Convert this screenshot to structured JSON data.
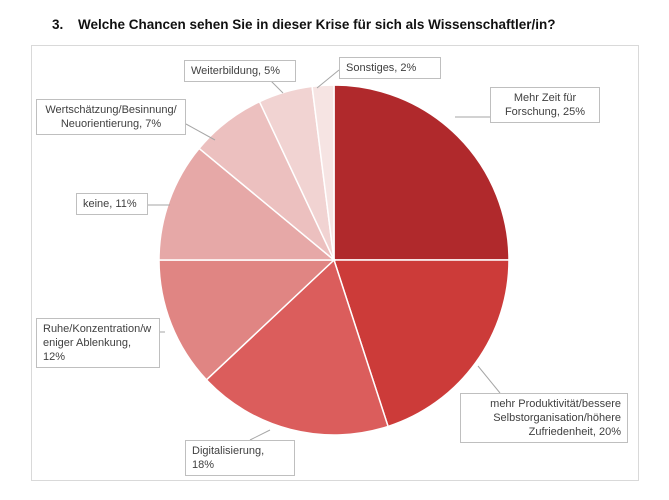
{
  "title": {
    "number": "3.",
    "text": "Welche Chancen sehen Sie in dieser Krise für sich als Wissenschaftler/in?"
  },
  "chart_data": {
    "type": "pie",
    "slices": [
      {
        "label": "Mehr Zeit für Forschung",
        "value": 25,
        "color": "#b0292c",
        "label_text": "Mehr Zeit für Forschung, 25%"
      },
      {
        "label": "mehr Produktivität/bessere Selbstorganisation/höhere Zufriedenheit",
        "value": 20,
        "color": "#cc3b39",
        "label_text": "mehr Produktivität/bessere Selbstorganisation/höhere Zufriedenheit, 20%"
      },
      {
        "label": "Digitalisierung",
        "value": 18,
        "color": "#db5d5c",
        "label_text": "Digitalisierung, 18%"
      },
      {
        "label": "Ruhe/Konzentration/weniger Ablenkung",
        "value": 12,
        "color": "#e08583",
        "label_text": "Ruhe/Konzentration/weniger Ablenkung, 12%"
      },
      {
        "label": "keine",
        "value": 11,
        "color": "#e6a8a7",
        "label_text": "keine, 11%"
      },
      {
        "label": "Wertschätzung/Besinnung/Neuorientierung",
        "value": 7,
        "color": "#ecc0bf",
        "label_text": "Wertschätzung/Besinnung/Neuorientierung, 7%"
      },
      {
        "label": "Weiterbildung",
        "value": 5,
        "color": "#f1d3d2",
        "label_text": "Weiterbildung, 5%"
      },
      {
        "label": "Sonstiges",
        "value": 2,
        "color": "#f6e4e3",
        "label_text": "Sonstiges, 2%"
      }
    ],
    "labels": {
      "s0": "Mehr Zeit für\nForschung, 25%",
      "s1": "mehr Produktivität/bessere\nSelbstorganisation/höhere\nZufriedenheit, 20%",
      "s2": "Digitalisierung, 18%",
      "s3": "Ruhe/Konzentration/w\neniger Ablenkung, 12%",
      "s4": "keine, 11%",
      "s5": "Wertschätzung/Besinnung/\nNeuorientierung, 7%",
      "s6": "Weiterbildung, 5%",
      "s7": "Sonstiges, 2%"
    }
  }
}
